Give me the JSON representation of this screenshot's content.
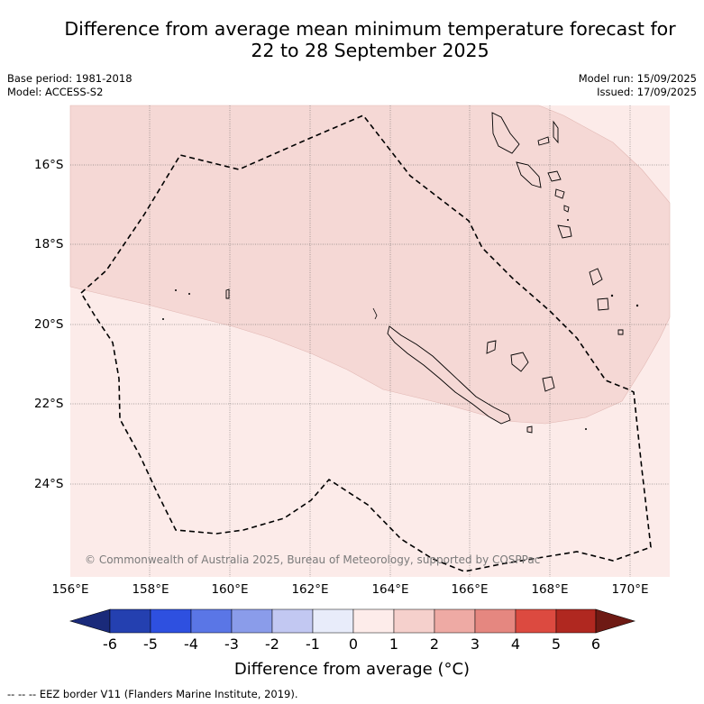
{
  "title_line1": "Difference from average mean minimum temperature forecast for",
  "title_line2": "22 to 28 September 2025",
  "base_period": "Base period: 1981-2018",
  "model": "Model: ACCESS-S2",
  "model_run": "Model run: 15/09/2025",
  "issued": "Issued: 17/09/2025",
  "copyright": "© Commonwealth of Australia 2025, Bureau of Meteorology, supported by COSPPac",
  "lat_labels": [
    "16°S",
    "18°S",
    "20°S",
    "22°S",
    "24°S"
  ],
  "lon_labels": [
    "156°E",
    "158°E",
    "160°E",
    "162°E",
    "164°E",
    "166°E",
    "168°E",
    "170°E"
  ],
  "colorbar": {
    "label": "Difference from average (°C)",
    "ticks": [
      "-6",
      "-5",
      "-4",
      "-3",
      "-2",
      "-1",
      "0",
      "1",
      "2",
      "3",
      "4",
      "5",
      "6"
    ],
    "colors": [
      "#1a2a7a",
      "#2440b0",
      "#2e50e0",
      "#5a76e6",
      "#8a9cea",
      "#c2c8f2",
      "#e8ecfa",
      "#fdecea",
      "#f5d0cc",
      "#eeaaa4",
      "#e58780",
      "#dc4a40",
      "#b02820",
      "#6e1a14"
    ]
  },
  "map_fill": {
    "outer": "#fcebe9",
    "inner": "#f5d8d5"
  },
  "footnote": "-- -- -- EEZ border V11 (Flanders Marine Institute, 2019)."
}
